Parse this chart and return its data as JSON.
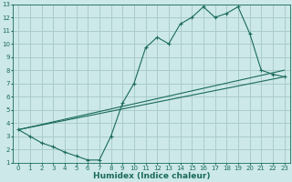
{
  "xlabel": "Humidex (Indice chaleur)",
  "bg_color": "#cce8e8",
  "grid_color": "#aacccc",
  "line_color": "#1a6b5a",
  "xlim": [
    -0.5,
    23.5
  ],
  "ylim": [
    1,
    13
  ],
  "xticks": [
    0,
    1,
    2,
    3,
    4,
    5,
    6,
    7,
    8,
    9,
    10,
    11,
    12,
    13,
    14,
    15,
    16,
    17,
    18,
    19,
    20,
    21,
    22,
    23
  ],
  "yticks": [
    1,
    2,
    3,
    4,
    5,
    6,
    7,
    8,
    9,
    10,
    11,
    12,
    13
  ],
  "line1_x": [
    0,
    1,
    2,
    3,
    4,
    5,
    6,
    7,
    8,
    9,
    10,
    11,
    12,
    13,
    14,
    15,
    16,
    17,
    18,
    19,
    20,
    21,
    22,
    23
  ],
  "line1_y": [
    3.5,
    3.0,
    2.5,
    2.2,
    1.8,
    1.5,
    1.2,
    1.2,
    3.0,
    5.5,
    7.0,
    9.7,
    10.5,
    10.0,
    11.5,
    12.0,
    12.8,
    12.0,
    12.3,
    12.8,
    10.8,
    8.0,
    7.7,
    7.5
  ],
  "line2_x": [
    0,
    23
  ],
  "line2_y": [
    3.5,
    8.0
  ],
  "line3_x": [
    0,
    23
  ],
  "line3_y": [
    3.5,
    7.5
  ],
  "xlabel_fontsize": 6.5,
  "tick_fontsize": 5.0
}
